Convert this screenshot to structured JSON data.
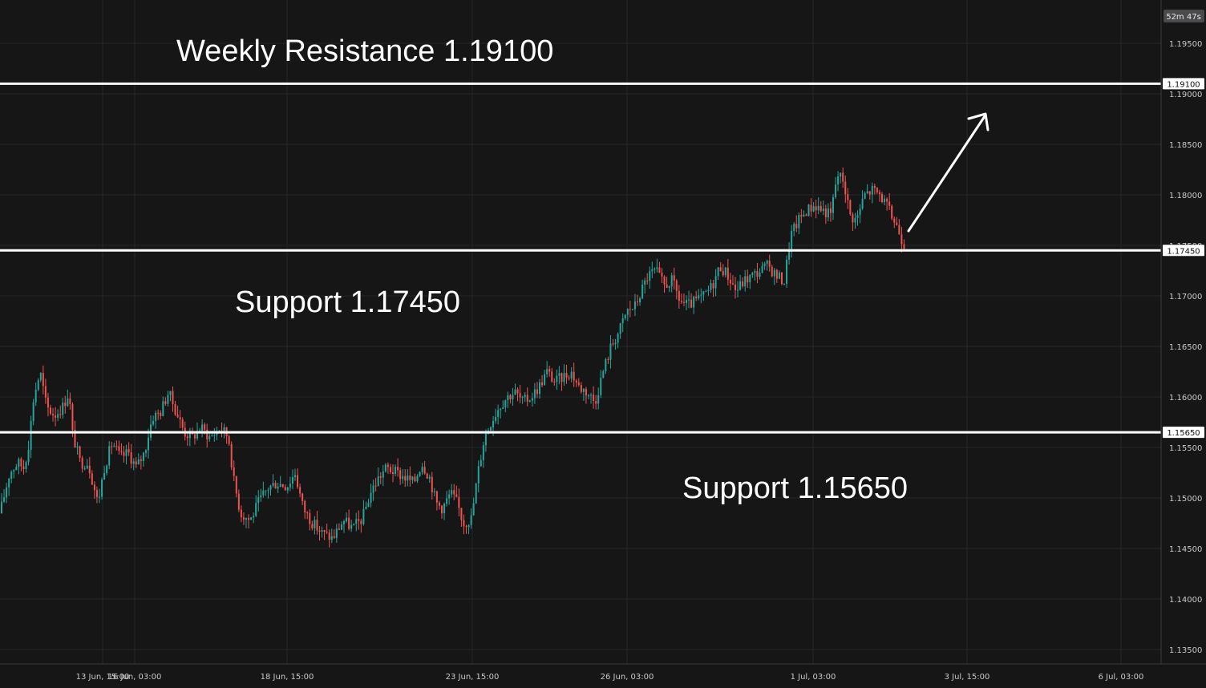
{
  "timer": "52m 47s",
  "colors": {
    "background": "#161617",
    "grid": "#262628",
    "up": "#26a69a",
    "down": "#ef5350",
    "level_line": "#ffffff",
    "text": "#c9c9c9"
  },
  "chart_data": {
    "type": "candlestick",
    "title": "",
    "xlabel": "",
    "ylabel": "",
    "ylim": [
      1.1325,
      1.1995
    ],
    "y_ticks": [
      "1.19500",
      "1.19000",
      "1.18500",
      "1.18000",
      "1.17500",
      "1.17000",
      "1.16500",
      "1.16000",
      "1.15500",
      "1.15000",
      "1.14500",
      "1.14000",
      "1.13500"
    ],
    "x_ticks": [
      "13 Jun, 15:00",
      "16 Jun, 03:00",
      "18 Jun, 15:00",
      "23 Jun, 15:00",
      "26 Jun, 03:00",
      "1 Jul, 03:00",
      "3 Jul, 15:00",
      "6 Jul, 03:00"
    ],
    "price_path": [
      [
        0,
        1.1485
      ],
      [
        12,
        1.1525
      ],
      [
        22,
        1.1535
      ],
      [
        30,
        1.153
      ],
      [
        36,
        1.1555
      ],
      [
        42,
        1.16
      ],
      [
        50,
        1.1625
      ],
      [
        58,
        1.159
      ],
      [
        68,
        1.1582
      ],
      [
        78,
        1.159
      ],
      [
        86,
        1.1605
      ],
      [
        90,
        1.1565
      ],
      [
        100,
        1.1535
      ],
      [
        110,
        1.1535
      ],
      [
        122,
        1.1495
      ],
      [
        130,
        1.153
      ],
      [
        140,
        1.1555
      ],
      [
        150,
        1.154
      ],
      [
        160,
        1.1545
      ],
      [
        170,
        1.153
      ],
      [
        180,
        1.1545
      ],
      [
        190,
        1.158
      ],
      [
        200,
        1.1585
      ],
      [
        210,
        1.1605
      ],
      [
        220,
        1.1585
      ],
      [
        230,
        1.1565
      ],
      [
        240,
        1.156
      ],
      [
        250,
        1.157
      ],
      [
        262,
        1.156
      ],
      [
        275,
        1.157
      ],
      [
        285,
        1.156
      ],
      [
        292,
        1.1515
      ],
      [
        300,
        1.1485
      ],
      [
        312,
        1.1478
      ],
      [
        322,
        1.1495
      ],
      [
        334,
        1.151
      ],
      [
        345,
        1.1515
      ],
      [
        358,
        1.1512
      ],
      [
        368,
        1.1525
      ],
      [
        378,
        1.149
      ],
      [
        390,
        1.1475
      ],
      [
        402,
        1.1465
      ],
      [
        415,
        1.146
      ],
      [
        428,
        1.1478
      ],
      [
        440,
        1.147
      ],
      [
        452,
        1.148
      ],
      [
        462,
        1.1505
      ],
      [
        472,
        1.152
      ],
      [
        482,
        1.153
      ],
      [
        494,
        1.1525
      ],
      [
        506,
        1.152
      ],
      [
        516,
        1.1515
      ],
      [
        526,
        1.1535
      ],
      [
        536,
        1.152
      ],
      [
        544,
        1.1495
      ],
      [
        552,
        1.149
      ],
      [
        562,
        1.1505
      ],
      [
        570,
        1.1495
      ],
      [
        578,
        1.1475
      ],
      [
        588,
        1.148
      ],
      [
        596,
        1.1525
      ],
      [
        604,
        1.156
      ],
      [
        612,
        1.1575
      ],
      [
        622,
        1.159
      ],
      [
        632,
        1.16
      ],
      [
        642,
        1.1605
      ],
      [
        652,
        1.1595
      ],
      [
        662,
        1.16
      ],
      [
        672,
        1.161
      ],
      [
        682,
        1.1625
      ],
      [
        692,
        1.1615
      ],
      [
        702,
        1.162
      ],
      [
        712,
        1.1625
      ],
      [
        722,
        1.161
      ],
      [
        732,
        1.1605
      ],
      [
        742,
        1.1595
      ],
      [
        752,
        1.1625
      ],
      [
        762,
        1.165
      ],
      [
        772,
        1.1665
      ],
      [
        782,
        1.1685
      ],
      [
        792,
        1.169
      ],
      [
        800,
        1.1705
      ],
      [
        808,
        1.172
      ],
      [
        818,
        1.1725
      ],
      [
        828,
        1.171
      ],
      [
        838,
        1.1715
      ],
      [
        848,
        1.1695
      ],
      [
        858,
        1.169
      ],
      [
        868,
        1.1695
      ],
      [
        878,
        1.17
      ],
      [
        888,
        1.171
      ],
      [
        898,
        1.173
      ],
      [
        908,
        1.172
      ],
      [
        918,
        1.1705
      ],
      [
        928,
        1.1715
      ],
      [
        938,
        1.172
      ],
      [
        948,
        1.1725
      ],
      [
        958,
        1.173
      ],
      [
        968,
        1.172
      ],
      [
        978,
        1.1715
      ],
      [
        986,
        1.176
      ],
      [
        996,
        1.1775
      ],
      [
        1006,
        1.1785
      ],
      [
        1016,
        1.179
      ],
      [
        1026,
        1.1785
      ],
      [
        1036,
        1.178
      ],
      [
        1044,
        1.182
      ],
      [
        1052,
        1.1815
      ],
      [
        1060,
        1.178
      ],
      [
        1068,
        1.1775
      ],
      [
        1078,
        1.18
      ],
      [
        1088,
        1.1805
      ],
      [
        1098,
        1.18
      ],
      [
        1108,
        1.1785
      ],
      [
        1118,
        1.177
      ],
      [
        1128,
        1.175
      ]
    ],
    "levels": [
      {
        "label": "Weekly Resistance 1.19100",
        "tag": "1.19100",
        "value": 1.191
      },
      {
        "label": "Support 1.17450",
        "tag": "1.17450",
        "value": 1.1745
      },
      {
        "label": "Support 1.15650",
        "tag": "1.15650",
        "value": 1.1565
      }
    ]
  }
}
